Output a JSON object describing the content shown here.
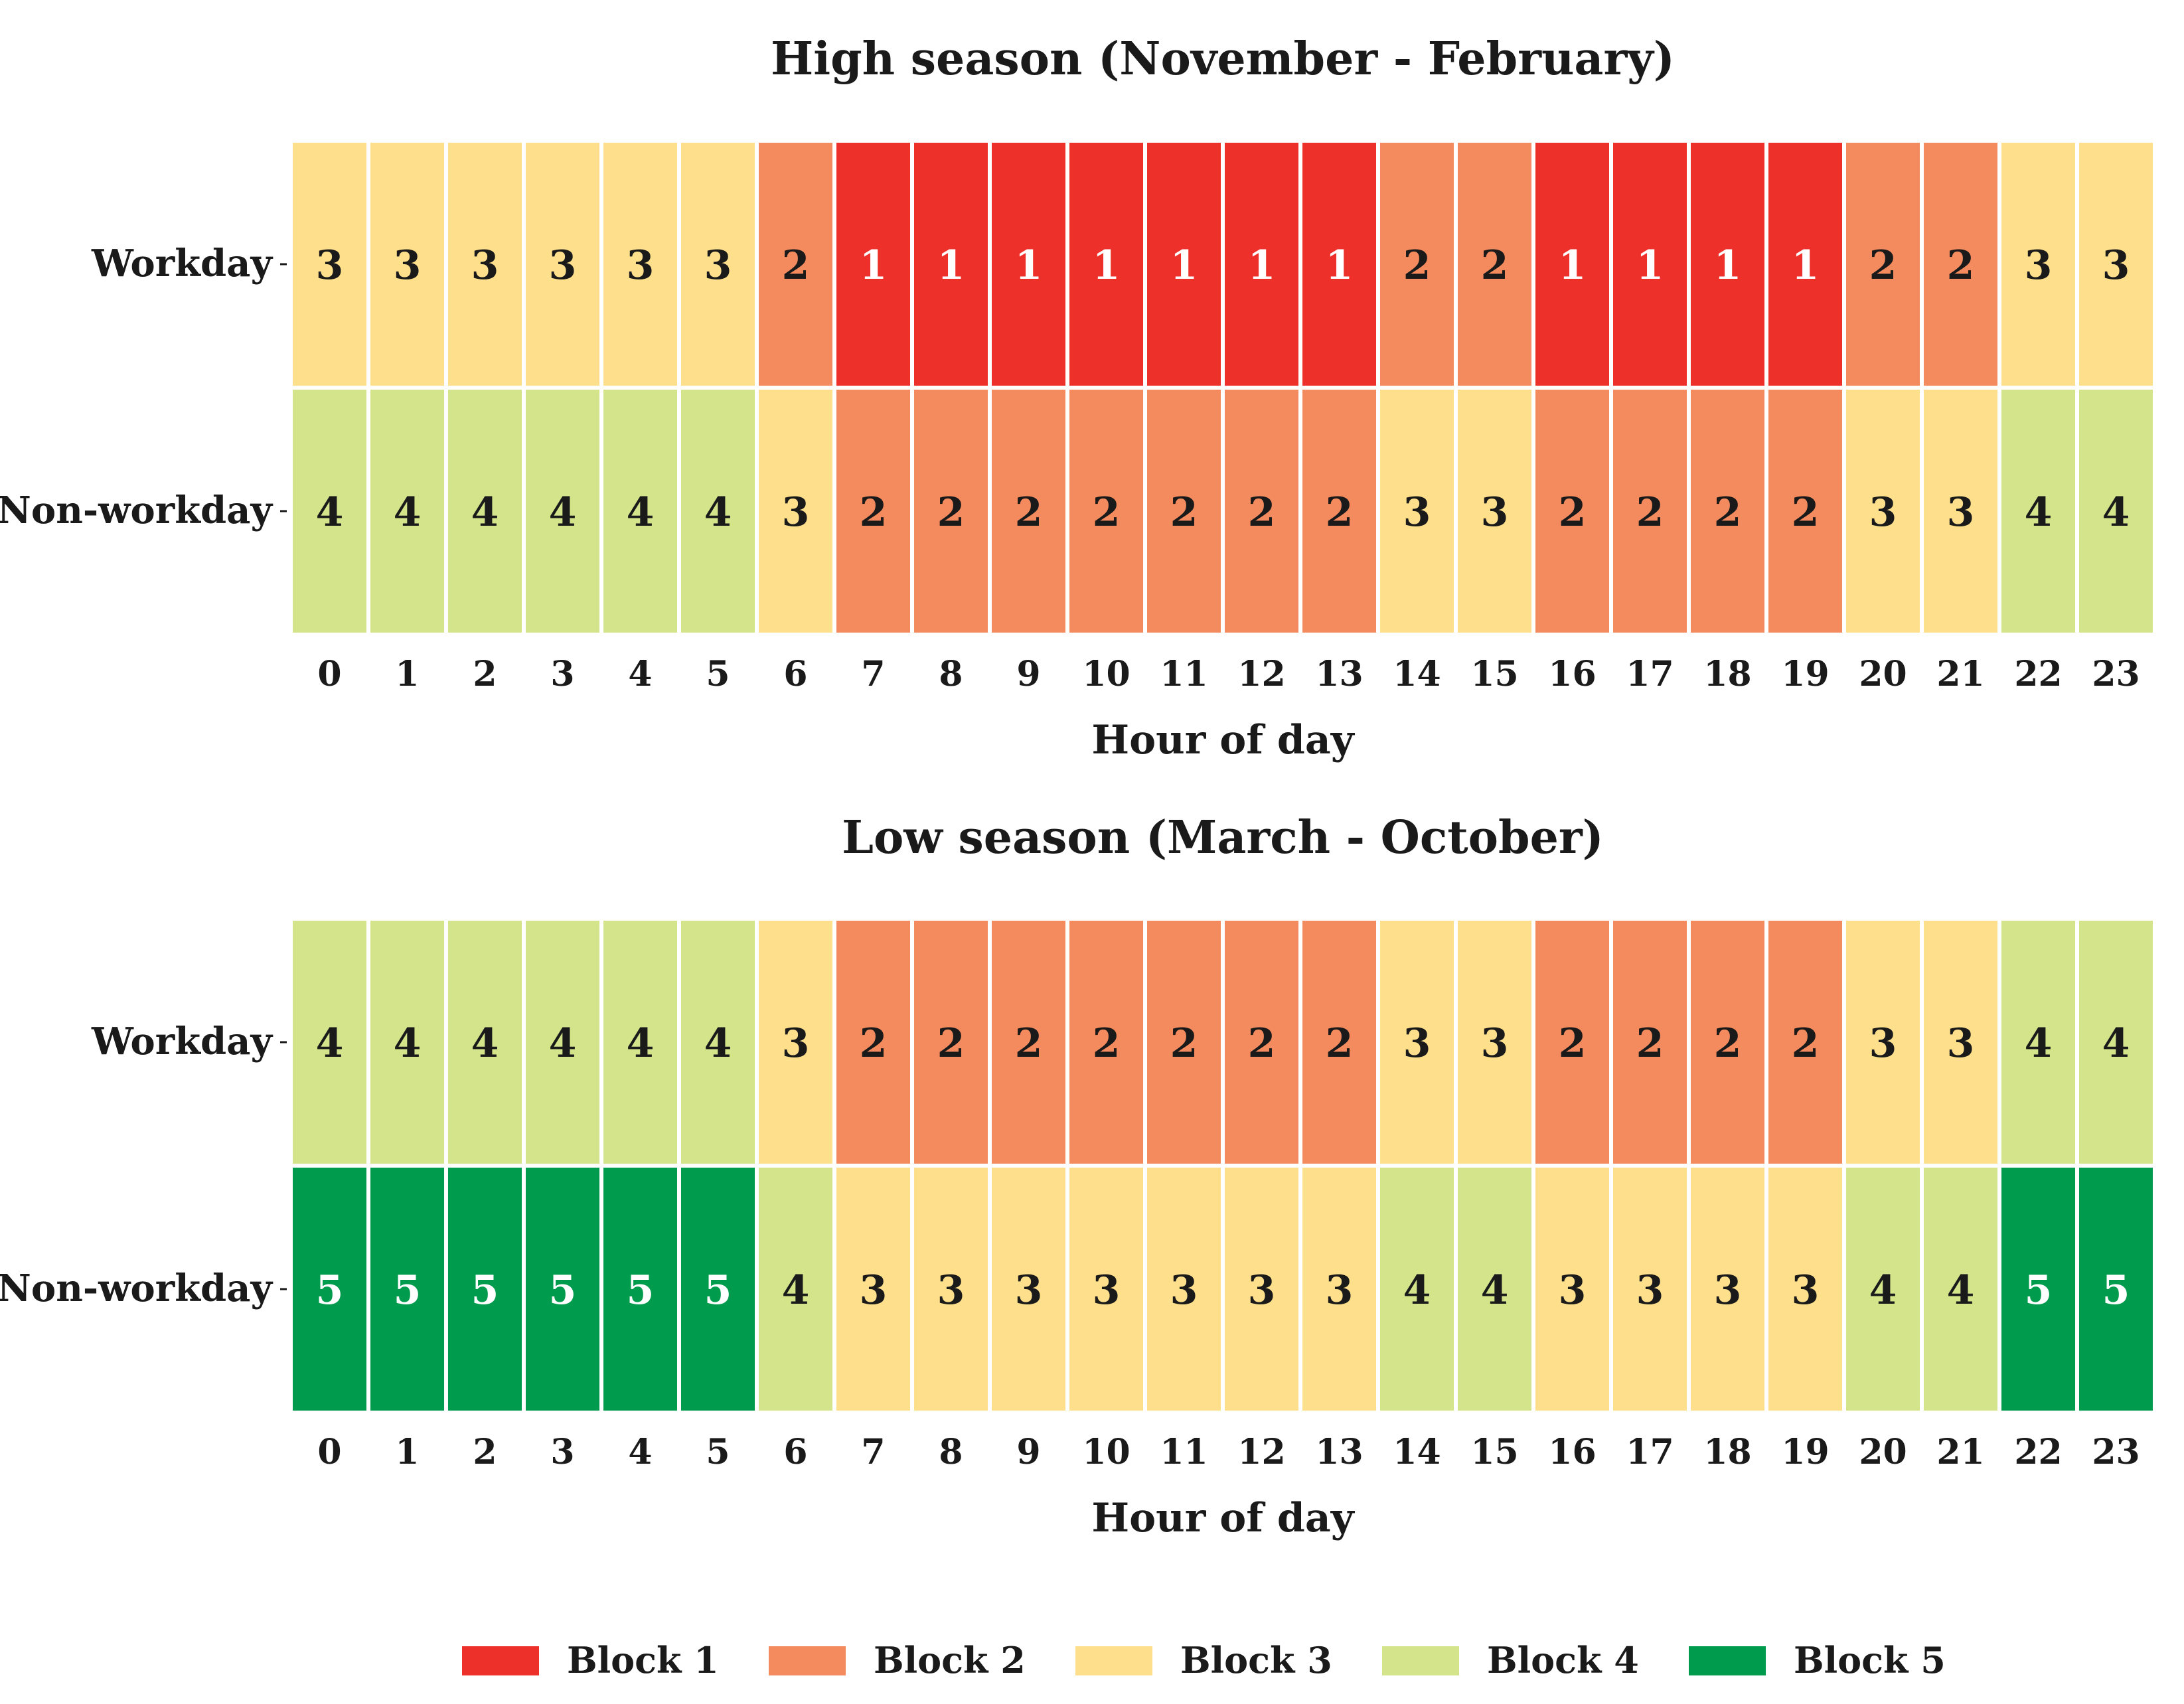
{
  "chart_data": [
    {
      "type": "heatmap",
      "title": "High season (November - February)",
      "xlabel": "Hour of day",
      "ylabel": "",
      "x": [
        "0",
        "1",
        "2",
        "3",
        "4",
        "5",
        "6",
        "7",
        "8",
        "9",
        "10",
        "11",
        "12",
        "13",
        "14",
        "15",
        "16",
        "17",
        "18",
        "19",
        "20",
        "21",
        "22",
        "23"
      ],
      "y": [
        "Workday",
        "Non-workday"
      ],
      "values": [
        [
          3,
          3,
          3,
          3,
          3,
          3,
          2,
          1,
          1,
          1,
          1,
          1,
          1,
          1,
          2,
          2,
          1,
          1,
          1,
          1,
          2,
          2,
          3,
          3
        ],
        [
          4,
          4,
          4,
          4,
          4,
          4,
          3,
          2,
          2,
          2,
          2,
          2,
          2,
          2,
          3,
          3,
          2,
          2,
          2,
          2,
          3,
          3,
          4,
          4
        ]
      ]
    },
    {
      "type": "heatmap",
      "title": "Low season (March - October)",
      "xlabel": "Hour of day",
      "ylabel": "",
      "x": [
        "0",
        "1",
        "2",
        "3",
        "4",
        "5",
        "6",
        "7",
        "8",
        "9",
        "10",
        "11",
        "12",
        "13",
        "14",
        "15",
        "16",
        "17",
        "18",
        "19",
        "20",
        "21",
        "22",
        "23"
      ],
      "y": [
        "Workday",
        "Non-workday"
      ],
      "values": [
        [
          4,
          4,
          4,
          4,
          4,
          4,
          3,
          2,
          2,
          2,
          2,
          2,
          2,
          2,
          3,
          3,
          2,
          2,
          2,
          2,
          3,
          3,
          4,
          4
        ],
        [
          5,
          5,
          5,
          5,
          5,
          5,
          4,
          3,
          3,
          3,
          3,
          3,
          3,
          3,
          4,
          4,
          3,
          3,
          3,
          3,
          4,
          4,
          5,
          5
        ]
      ]
    }
  ],
  "legend": {
    "placement": "bottom",
    "entries": [
      {
        "value": 1,
        "label": "Block 1",
        "color": "#ee302b"
      },
      {
        "value": 2,
        "label": "Block 2",
        "color": "#f38b5f"
      },
      {
        "value": 3,
        "label": "Block 3",
        "color": "#fddf8c"
      },
      {
        "value": 4,
        "label": "Block 4",
        "color": "#d3e48b"
      },
      {
        "value": 5,
        "label": "Block 5",
        "color": "#009b4c"
      }
    ]
  },
  "colors": {
    "text_dark": "#1a1a1a",
    "text_light": "#ffffff",
    "cell_border": "#ffffff"
  }
}
